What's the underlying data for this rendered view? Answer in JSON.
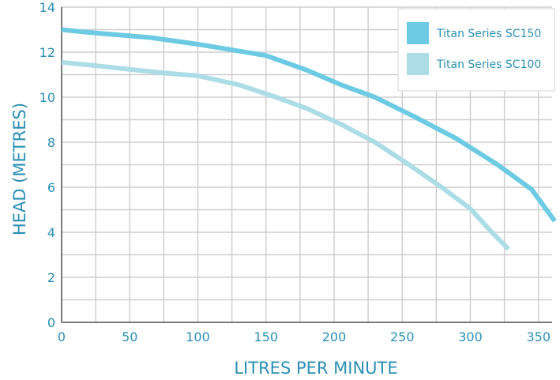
{
  "chart_data": {
    "type": "line",
    "xlabel": "LITRES PER MINUTE",
    "ylabel": "HEAD (METRES)",
    "xlim": [
      0,
      360
    ],
    "ylim": [
      0,
      14
    ],
    "x_ticks": [
      0,
      50,
      100,
      150,
      200,
      250,
      300,
      350
    ],
    "y_ticks": [
      0,
      2,
      4,
      6,
      8,
      10,
      12,
      14
    ],
    "x_tick_labels": [
      "0",
      "50",
      "100",
      "150",
      "200",
      "250",
      "300",
      "350"
    ],
    "y_tick_labels": [
      "0",
      "2",
      "4",
      "6",
      "8",
      "10",
      "12",
      "14"
    ],
    "grid": true,
    "legend_position": "top-right",
    "series": [
      {
        "name": "Titan Series SC150",
        "color": "#6ccbe3",
        "x": [
          0,
          15,
          35,
          65,
          100,
          130,
          150,
          180,
          205,
          230,
          260,
          290,
          320,
          345,
          362
        ],
        "y": [
          13.0,
          12.9,
          12.8,
          12.65,
          12.35,
          12.05,
          11.85,
          11.2,
          10.55,
          10.0,
          9.1,
          8.15,
          7.0,
          5.9,
          4.5
        ]
      },
      {
        "name": "Titan Series SC100",
        "color": "#acdde6",
        "x": [
          0,
          25,
          55,
          80,
          100,
          130,
          155,
          180,
          205,
          230,
          255,
          280,
          300,
          315,
          328
        ],
        "y": [
          11.55,
          11.4,
          11.2,
          11.05,
          10.95,
          10.55,
          10.05,
          9.5,
          8.8,
          8.0,
          7.0,
          5.95,
          5.05,
          4.05,
          3.25
        ]
      }
    ]
  }
}
